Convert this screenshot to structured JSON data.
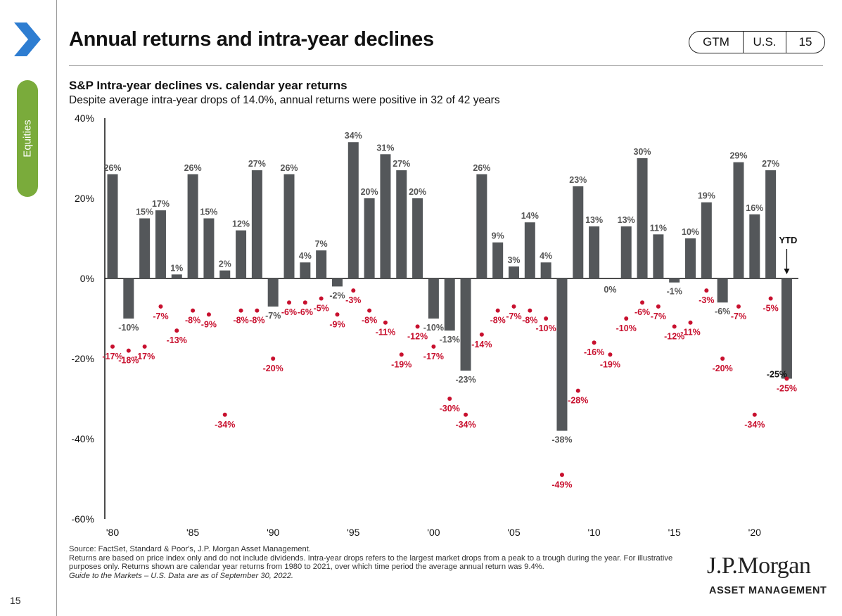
{
  "page": {
    "title": "Annual returns and intra-year declines",
    "badge": [
      "GTM",
      "U.S.",
      "15"
    ],
    "section": "Equities",
    "page_number": "15",
    "brand_color": "#2e7dd1",
    "section_color": "#7aab3b"
  },
  "chart_data": {
    "type": "bar",
    "title": "S&P Intra-year declines vs. calendar year returns",
    "subtitle": "Despite average intra-year drops of 14.0%, annual returns were positive in 32 of 42 years",
    "ylim": [
      -60,
      40
    ],
    "yticks": [
      "40%",
      "20%",
      "0%",
      "-20%",
      "-40%",
      "-60%"
    ],
    "xticks": [
      "'80",
      "'85",
      "'90",
      "'95",
      "'00",
      "'05",
      "'10",
      "'15",
      "'20"
    ],
    "years": [
      1980,
      1981,
      1982,
      1983,
      1984,
      1985,
      1986,
      1987,
      1988,
      1989,
      1990,
      1991,
      1992,
      1993,
      1994,
      1995,
      1996,
      1997,
      1998,
      1999,
      2000,
      2001,
      2002,
      2003,
      2004,
      2005,
      2006,
      2007,
      2008,
      2009,
      2010,
      2011,
      2012,
      2013,
      2014,
      2015,
      2016,
      2017,
      2018,
      2019,
      2020,
      2021,
      2022
    ],
    "series": [
      {
        "name": "calendar year returns",
        "color": "#54575a",
        "values": [
          26,
          -10,
          15,
          17,
          1,
          26,
          15,
          2,
          12,
          27,
          -7,
          26,
          4,
          7,
          -2,
          34,
          20,
          31,
          27,
          20,
          -10,
          -13,
          -23,
          26,
          9,
          3,
          14,
          4,
          -38,
          23,
          13,
          0,
          13,
          30,
          11,
          -1,
          10,
          19,
          -6,
          29,
          16,
          27,
          -25
        ],
        "labels": [
          "26%",
          "-10%",
          "15%",
          "17%",
          "1%",
          "26%",
          "15%",
          "2%",
          "12%",
          "27%",
          "-7%",
          "26%",
          "4%",
          "7%",
          "-2%",
          "34%",
          "20%",
          "31%",
          "27%",
          "20%",
          "-10%",
          "-13%",
          "-23%",
          "26%",
          "9%",
          "3%",
          "14%",
          "4%",
          "-38%",
          "23%",
          "13%",
          "0%",
          "13%",
          "30%",
          "11%",
          "-1%",
          "10%",
          "19%",
          "-6%",
          "29%",
          "16%",
          "27%",
          "-25%"
        ]
      },
      {
        "name": "intra-year declines",
        "color": "#c8102e",
        "values": [
          -17,
          -18,
          -17,
          -7,
          -13,
          -8,
          -9,
          -34,
          -8,
          -8,
          -20,
          -6,
          -6,
          -5,
          -9,
          -3,
          -8,
          -11,
          -19,
          -12,
          -17,
          -30,
          -34,
          -14,
          -8,
          -7,
          -8,
          -10,
          -49,
          -28,
          -16,
          -19,
          -10,
          -6,
          -7,
          -12,
          -11,
          -3,
          -20,
          -7,
          -34,
          -5,
          -25
        ],
        "labels": [
          "-17%",
          "-18%",
          "-17%",
          "-7%",
          "-13%",
          "-8%",
          "-9%",
          "-34%",
          "-8%",
          "-8%",
          "-20%",
          "-6%",
          "-6%",
          "-5%",
          "-9%",
          "-3%",
          "-8%",
          "-11%",
          "-19%",
          "-12%",
          "-17%",
          "-30%",
          "-34%",
          "-14%",
          "-8%",
          "-7%",
          "-8%",
          "-10%",
          "-49%",
          "-28%",
          "-16%",
          "-19%",
          "-10%",
          "-6%",
          "-7%",
          "-12%",
          "-11%",
          "-3%",
          "-20%",
          "-7%",
          "-34%",
          "-5%",
          "-25%"
        ]
      }
    ],
    "ytd_label": "YTD"
  },
  "footnotes": [
    "Source: FactSet, Standard & Poor's, J.P. Morgan Asset Management.",
    "Returns are based on price index only and do not include dividends. Intra-year drops refers to the largest market drops from a peak to a trough during the year. For illustrative purposes only. Returns shown are calendar year returns from 1980 to 2021, over which time period the average annual return was 9.4%.",
    "Guide to the Markets – U.S. Data are as of September 30, 2022."
  ],
  "logo": {
    "name": "J.P.Morgan",
    "sub": "ASSET MANAGEMENT"
  }
}
